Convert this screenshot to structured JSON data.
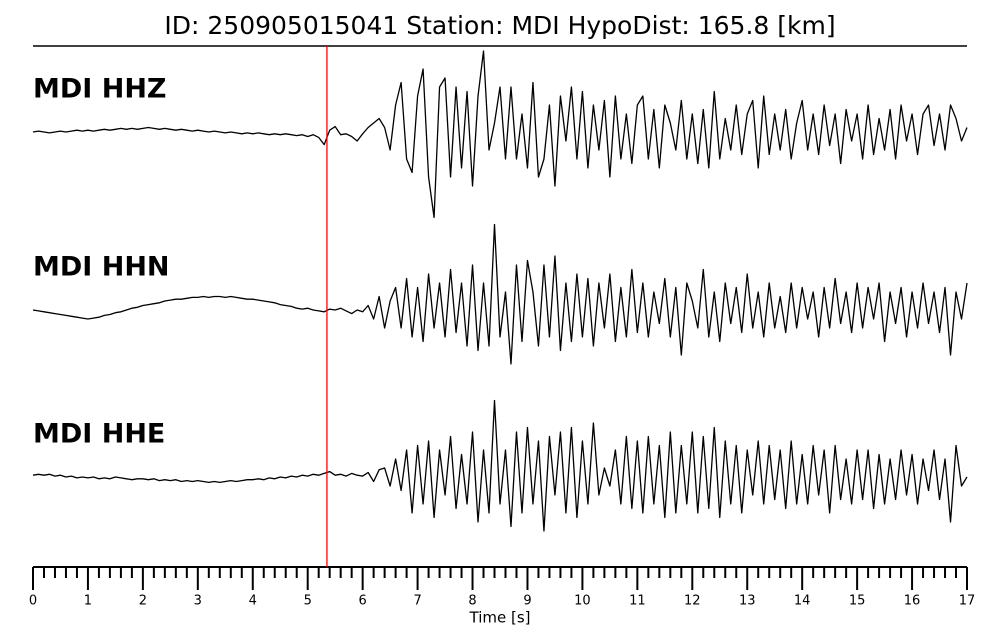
{
  "chart_data": {
    "type": "line",
    "title": "ID: 250905015041   Station: MDI   HypoDist:   165.8 [km]",
    "xlabel": "Time [s]",
    "xlim": [
      0,
      17
    ],
    "xticks": [
      0,
      1,
      2,
      3,
      4,
      5,
      6,
      7,
      8,
      9,
      10,
      11,
      12,
      13,
      14,
      15,
      16,
      17
    ],
    "xminor_interval": 0.2,
    "ylim": [
      -1,
      1
    ],
    "label_color": "#4a9a00",
    "pick": {
      "value": 5.35,
      "color": "#ff0000"
    },
    "x": [
      0,
      0.1,
      0.2,
      0.3,
      0.4,
      0.5,
      0.6,
      0.7,
      0.8,
      0.9,
      1,
      1.1,
      1.2,
      1.3,
      1.4,
      1.5,
      1.6,
      1.7,
      1.8,
      1.9,
      2,
      2.1,
      2.2,
      2.3,
      2.4,
      2.5,
      2.6,
      2.7,
      2.8,
      2.9,
      3,
      3.1,
      3.2,
      3.3,
      3.4,
      3.5,
      3.6,
      3.7,
      3.8,
      3.9,
      4,
      4.1,
      4.2,
      4.3,
      4.4,
      4.5,
      4.6,
      4.7,
      4.8,
      4.9,
      5,
      5.1,
      5.2,
      5.3,
      5.4,
      5.5,
      5.6,
      5.7,
      5.8,
      5.9,
      6,
      6.1,
      6.2,
      6.3,
      6.4,
      6.5,
      6.6,
      6.7,
      6.8,
      6.9,
      7,
      7.1,
      7.2,
      7.3,
      7.4,
      7.5,
      7.6,
      7.7,
      7.8,
      7.9,
      8,
      8.1,
      8.2,
      8.3,
      8.4,
      8.5,
      8.6,
      8.7,
      8.8,
      8.9,
      9,
      9.1,
      9.2,
      9.3,
      9.4,
      9.5,
      9.6,
      9.7,
      9.8,
      9.9,
      10,
      10.1,
      10.2,
      10.3,
      10.4,
      10.5,
      10.6,
      10.7,
      10.8,
      10.9,
      11,
      11.1,
      11.2,
      11.3,
      11.4,
      11.5,
      11.6,
      11.7,
      11.8,
      11.9,
      12,
      12.1,
      12.2,
      12.3,
      12.4,
      12.5,
      12.6,
      12.7,
      12.8,
      12.9,
      13,
      13.1,
      13.2,
      13.3,
      13.4,
      13.5,
      13.6,
      13.7,
      13.8,
      13.9,
      14,
      14.1,
      14.2,
      14.3,
      14.4,
      14.5,
      14.6,
      14.7,
      14.8,
      14.9,
      15,
      15.1,
      15.2,
      15.3,
      15.4,
      15.5,
      15.6,
      15.7,
      15.8,
      15.9,
      16,
      16.1,
      16.2,
      16.3,
      16.4,
      16.5,
      16.6,
      16.7,
      16.8,
      16.9,
      17
    ],
    "series": [
      {
        "name": "MDI HHZ",
        "color": "#000000",
        "values": [
          0,
          0.01,
          0,
          -0.01,
          0,
          0.01,
          0,
          0.01,
          0.02,
          0.01,
          0.02,
          0.01,
          0.02,
          0.03,
          0.02,
          0.03,
          0.04,
          0.03,
          0.04,
          0.03,
          0.04,
          0.05,
          0.04,
          0.03,
          0.04,
          0.03,
          0.02,
          0.03,
          0.02,
          0.01,
          0.02,
          0.01,
          0,
          0.01,
          0,
          -0.01,
          0,
          -0.01,
          -0.02,
          -0.01,
          -0.02,
          -0.01,
          -0.02,
          -0.03,
          -0.02,
          -0.03,
          -0.02,
          -0.03,
          -0.04,
          -0.03,
          -0.05,
          -0.03,
          -0.06,
          -0.14,
          0.02,
          0.06,
          -0.03,
          -0.02,
          -0.05,
          -0.1,
          -0.02,
          0.05,
          0.1,
          0.15,
          0.05,
          -0.2,
          0.3,
          0.55,
          -0.3,
          -0.45,
          0.4,
          0.7,
          -0.5,
          -0.95,
          0.5,
          0.6,
          -0.5,
          0.5,
          -0.4,
          0.45,
          -0.6,
          0.4,
          0.9,
          -0.2,
          0.1,
          0.5,
          -0.3,
          0.5,
          -0.3,
          0.2,
          -0.4,
          0.55,
          -0.5,
          -0.3,
          0.3,
          -0.6,
          0.4,
          -0.1,
          0.5,
          -0.3,
          0.45,
          -0.4,
          0.3,
          -0.2,
          0.35,
          -0.5,
          0.4,
          -0.3,
          0.2,
          -0.35,
          0.3,
          0.4,
          -0.3,
          0.25,
          -0.4,
          0.3,
          0.1,
          -0.2,
          0.35,
          -0.3,
          0.2,
          -0.35,
          0.25,
          -0.4,
          0.45,
          -0.3,
          0.15,
          -0.2,
          0.3,
          -0.25,
          0.2,
          0.35,
          -0.4,
          0.4,
          -0.25,
          0.2,
          -0.2,
          0.25,
          -0.3,
          0.1,
          0.35,
          -0.2,
          0.2,
          -0.25,
          0.3,
          -0.15,
          0.2,
          -0.35,
          0.25,
          -0.1,
          0.2,
          -0.3,
          0.3,
          -0.25,
          0.15,
          -0.2,
          0.25,
          -0.3,
          0.3,
          -0.1,
          0.2,
          -0.25,
          0.2,
          0.3,
          -0.15,
          0.2,
          -0.2,
          0.3,
          0.15,
          -0.1,
          0.05
        ]
      },
      {
        "name": "MDI HHN",
        "color": "#000000",
        "values": [
          0,
          -0.01,
          -0.02,
          -0.03,
          -0.04,
          -0.05,
          -0.06,
          -0.07,
          -0.08,
          -0.09,
          -0.1,
          -0.09,
          -0.08,
          -0.06,
          -0.05,
          -0.03,
          -0.02,
          0,
          0.02,
          0.03,
          0.05,
          0.06,
          0.07,
          0.08,
          0.1,
          0.11,
          0.12,
          0.12,
          0.13,
          0.14,
          0.14,
          0.15,
          0.14,
          0.15,
          0.15,
          0.14,
          0.15,
          0.14,
          0.13,
          0.12,
          0.12,
          0.11,
          0.1,
          0.09,
          0.08,
          0.06,
          0.05,
          0.04,
          0.02,
          0.01,
          0.02,
          0,
          -0.01,
          -0.02,
          0.01,
          0,
          0.02,
          -0.01,
          -0.04,
          0,
          -0.02,
          0.05,
          -0.1,
          0.15,
          -0.2,
          0.1,
          0.25,
          -0.2,
          0.35,
          -0.3,
          0.25,
          -0.35,
          0.4,
          -0.2,
          0.3,
          -0.3,
          0.45,
          -0.25,
          0.3,
          -0.4,
          0.5,
          -0.45,
          0.3,
          -0.4,
          0.95,
          -0.3,
          0.2,
          -0.6,
          0.5,
          -0.35,
          0.55,
          0.2,
          -0.4,
          0.5,
          -0.3,
          0.6,
          -0.45,
          0.3,
          -0.35,
          0.4,
          -0.3,
          0.35,
          -0.4,
          0.3,
          -0.2,
          0.4,
          -0.35,
          0.25,
          -0.3,
          0.45,
          -0.25,
          0.3,
          -0.3,
          0.2,
          -0.15,
          0.35,
          -0.3,
          0.25,
          -0.5,
          0.3,
          0.1,
          -0.2,
          0.45,
          -0.3,
          0.2,
          -0.35,
          0.3,
          -0.15,
          0.25,
          -0.25,
          0.4,
          -0.2,
          0.2,
          -0.3,
          0.3,
          -0.2,
          0.15,
          -0.25,
          0.3,
          -0.2,
          0.25,
          -0.1,
          0.2,
          -0.3,
          0.25,
          -0.2,
          0.35,
          -0.15,
          0.2,
          -0.25,
          0.3,
          -0.2,
          0.25,
          -0.1,
          0.3,
          -0.35,
          0.2,
          -0.15,
          0.25,
          -0.3,
          0.2,
          -0.2,
          0.3,
          -0.15,
          0.2,
          -0.25,
          0.25,
          -0.5,
          0.2,
          -0.1,
          0.3
        ]
      },
      {
        "name": "MDI HHE",
        "color": "#000000",
        "values": [
          0.02,
          0.03,
          0.02,
          0.03,
          0.01,
          0.02,
          0,
          0.01,
          -0.01,
          0,
          -0.01,
          0,
          -0.02,
          -0.01,
          -0.02,
          0,
          -0.01,
          -0.02,
          -0.03,
          -0.02,
          -0.02,
          -0.03,
          -0.02,
          -0.04,
          -0.03,
          -0.04,
          -0.03,
          -0.05,
          -0.04,
          -0.05,
          -0.04,
          -0.05,
          -0.06,
          -0.05,
          -0.06,
          -0.05,
          -0.04,
          -0.05,
          -0.04,
          -0.03,
          -0.03,
          -0.02,
          -0.03,
          -0.01,
          -0.02,
          0,
          -0.01,
          0.01,
          0,
          0.02,
          0.01,
          0.03,
          0.02,
          0.04,
          0.06,
          0.02,
          0.03,
          0.01,
          0.04,
          0.02,
          0.01,
          0.05,
          -0.05,
          0.08,
          0.1,
          -0.1,
          0.2,
          -0.15,
          0.3,
          -0.4,
          0.35,
          -0.3,
          0.4,
          -0.45,
          0.3,
          -0.2,
          0.45,
          -0.35,
          0.25,
          -0.3,
          0.5,
          -0.5,
          0.3,
          -0.4,
          0.85,
          -0.3,
          0.3,
          -0.55,
          0.5,
          -0.4,
          0.55,
          -0.3,
          0.4,
          -0.6,
          0.45,
          -0.2,
          0.5,
          -0.4,
          0.55,
          -0.45,
          0.4,
          -0.3,
          0.6,
          -0.2,
          0.1,
          -0.1,
          0.3,
          -0.3,
          0.45,
          -0.35,
          0.4,
          -0.4,
          0.45,
          -0.3,
          0.35,
          -0.45,
          0.5,
          -0.4,
          0.35,
          -0.3,
          0.5,
          -0.4,
          0.45,
          -0.35,
          0.55,
          -0.45,
          0.4,
          -0.3,
          0.35,
          -0.4,
          0.3,
          -0.2,
          0.4,
          -0.3,
          0.35,
          -0.25,
          0.3,
          -0.35,
          0.4,
          -0.3,
          0.25,
          -0.3,
          0.35,
          -0.2,
          0.3,
          -0.4,
          0.35,
          -0.25,
          0.2,
          -0.3,
          0.3,
          -0.25,
          0.3,
          -0.35,
          0.25,
          -0.3,
          0.2,
          -0.25,
          0.3,
          -0.2,
          0.25,
          -0.3,
          0.2,
          -0.15,
          0.3,
          -0.25,
          0.2,
          -0.5,
          0.35,
          -0.1,
          0
        ]
      }
    ]
  }
}
